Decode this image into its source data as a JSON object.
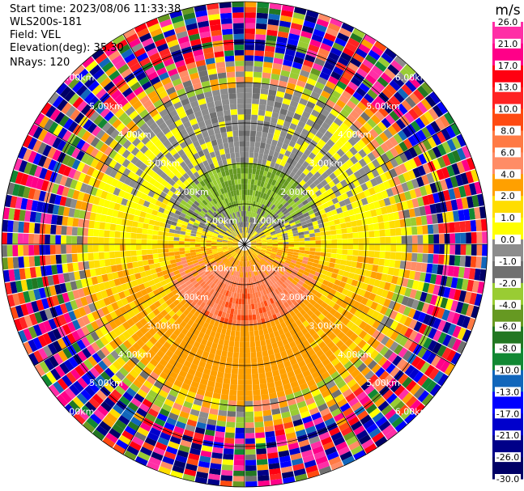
{
  "header": {
    "start_time": "Start time: 2023/08/06 11:33:38",
    "instrument": "WLS200s-181",
    "field": "Field: VEL",
    "elevation": "Elevation(deg): 35.30",
    "nrays": "NRays: 120"
  },
  "colorbar": {
    "unit": "m/s",
    "ticks": [
      "26.0",
      "21.0",
      "17.0",
      "13.0",
      "10.0",
      "8.0",
      "6.0",
      "4.0",
      "2.0",
      "1.0",
      "0.0",
      "-1.0",
      "-2.0",
      "-4.0",
      "-6.0",
      "-8.0",
      "-10.0",
      "-13.0",
      "-17.0",
      "-21.0",
      "-26.0",
      "-30.0"
    ],
    "colors": [
      "#ff2fa6",
      "#ff0088",
      "#ff0011",
      "#ff2222",
      "#ff4a11",
      "#ff7a44",
      "#ff8c66",
      "#ffa000",
      "#ffdd00",
      "#ffff00",
      "#8c8c8c",
      "#707070",
      "#99cc33",
      "#669922",
      "#227722",
      "#118833",
      "#1166bb",
      "#0000ff",
      "#0000cc",
      "#000088",
      "#000066",
      "#000044"
    ]
  },
  "chart_data": {
    "type": "heatmap",
    "projection": "polar-ppi",
    "field": "VEL",
    "unit": "m/s",
    "elevation_deg": 35.3,
    "n_rays": 120,
    "range_rings_km": [
      1.0,
      2.0,
      3.0,
      4.0,
      5.0,
      6.0
    ],
    "ring_labels": [
      "1.00km",
      "2.00km",
      "3.00km",
      "4.00km",
      "5.00km",
      "6.00km"
    ],
    "max_range_km": 6.0,
    "value_range": [
      -30.0,
      26.0
    ],
    "grid": true
  }
}
